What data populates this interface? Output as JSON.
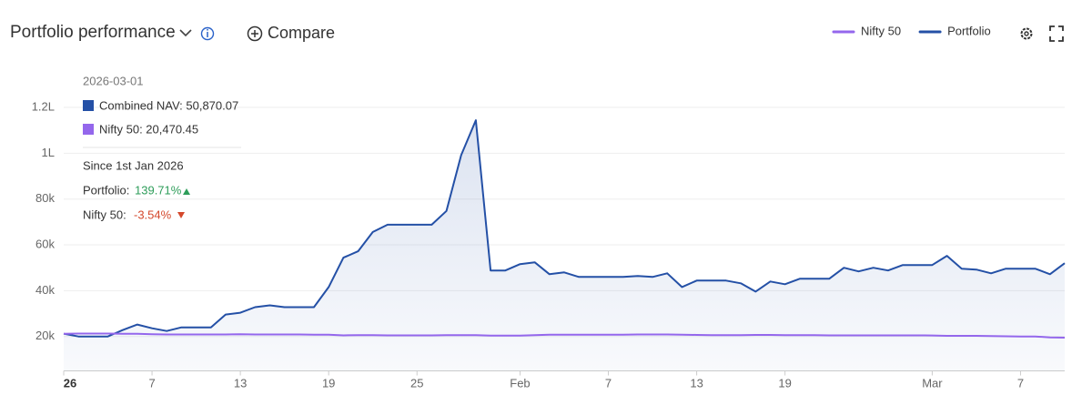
{
  "header": {
    "title": "Portfolio performance",
    "compare": "Compare"
  },
  "tooltip": {
    "date": "2026-03-01",
    "nav": "Combined NAV: 50,870.07",
    "nifty": "Nifty 50: 20,470.45",
    "since": "Since 1st Jan 2026",
    "portfolio_label": "Portfolio:",
    "portfolio_change": "139.71%",
    "nifty_label": "Nifty 50:",
    "nifty_change": "-3.54%"
  },
  "chart_data": {
    "type": "line",
    "x": [
      "2026-01-01",
      "2026-01-02",
      "2026-01-03",
      "2026-01-04",
      "2026-01-05",
      "2026-01-06",
      "2026-01-07",
      "2026-01-08",
      "2026-01-09",
      "2026-01-10",
      "2026-01-11",
      "2026-01-12",
      "2026-01-13",
      "2026-01-14",
      "2026-01-15",
      "2026-01-16",
      "2026-01-17",
      "2026-01-18",
      "2026-01-19",
      "2026-01-20",
      "2026-01-21",
      "2026-01-22",
      "2026-01-23",
      "2026-01-24",
      "2026-01-25",
      "2026-01-26",
      "2026-01-27",
      "2026-01-28",
      "2026-01-29",
      "2026-01-30",
      "2026-01-31",
      "2026-02-01",
      "2026-02-02",
      "2026-02-03",
      "2026-02-04",
      "2026-02-05",
      "2026-02-06",
      "2026-02-07",
      "2026-02-08",
      "2026-02-09",
      "2026-02-10",
      "2026-02-11",
      "2026-02-12",
      "2026-02-13",
      "2026-02-14",
      "2026-02-15",
      "2026-02-16",
      "2026-02-17",
      "2026-02-18",
      "2026-02-19",
      "2026-02-20",
      "2026-02-21",
      "2026-02-22",
      "2026-02-23",
      "2026-02-24",
      "2026-02-25",
      "2026-02-26",
      "2026-02-27",
      "2026-02-28",
      "2026-03-01",
      "2026-03-02",
      "2026-03-03",
      "2026-03-04",
      "2026-03-05",
      "2026-03-06",
      "2026-03-07",
      "2026-03-08",
      "2026-03-09",
      "2026-03-10"
    ],
    "series": [
      {
        "name": "Nifty 50",
        "color": "#9467ec",
        "values": [
          21200,
          21300,
          21300,
          21300,
          21200,
          21200,
          21000,
          20900,
          20900,
          20900,
          20900,
          20900,
          21000,
          20900,
          20900,
          20900,
          20900,
          20800,
          20800,
          20500,
          20600,
          20600,
          20500,
          20500,
          20500,
          20500,
          20600,
          20600,
          20600,
          20400,
          20400,
          20400,
          20600,
          20800,
          20800,
          20800,
          20800,
          20800,
          20800,
          20900,
          20900,
          20900,
          20800,
          20700,
          20600,
          20600,
          20600,
          20700,
          20700,
          20600,
          20600,
          20600,
          20500,
          20500,
          20500,
          20500,
          20500,
          20500,
          20500,
          20470,
          20300,
          20300,
          20300,
          20200,
          20100,
          20000,
          20000,
          19600,
          19500
        ]
      },
      {
        "name": "Portfolio",
        "color": "#2450a6",
        "values": [
          21200,
          20000,
          20000,
          20000,
          22800,
          25200,
          23600,
          22400,
          24000,
          24000,
          24000,
          29600,
          30400,
          32800,
          33600,
          32800,
          32800,
          32800,
          41600,
          54400,
          57200,
          65600,
          68800,
          68800,
          68800,
          68800,
          74800,
          99200,
          114400,
          48800,
          48800,
          51600,
          52400,
          47200,
          48000,
          46000,
          46000,
          46000,
          46000,
          46400,
          46000,
          47600,
          41600,
          44400,
          44400,
          44400,
          43200,
          39600,
          44000,
          42800,
          45200,
          45200,
          45200,
          50000,
          48400,
          50000,
          48800,
          51200,
          51200,
          51200,
          55200,
          49600,
          49200,
          47600,
          49600,
          49600,
          49600,
          47200,
          52000
        ]
      }
    ],
    "xlim": [
      "2026-01-01",
      "2026-03-10"
    ],
    "xticks": [
      {
        "value": "2026-01-01",
        "label": "26"
      },
      {
        "value": "2026-01-07",
        "label": "7"
      },
      {
        "value": "2026-01-13",
        "label": "13"
      },
      {
        "value": "2026-01-19",
        "label": "19"
      },
      {
        "value": "2026-01-25",
        "label": "25"
      },
      {
        "value": "2026-02-01",
        "label": "Feb"
      },
      {
        "value": "2026-02-07",
        "label": "7"
      },
      {
        "value": "2026-02-13",
        "label": "13"
      },
      {
        "value": "2026-02-19",
        "label": "19"
      },
      {
        "value": "2026-03-01",
        "label": "Mar"
      },
      {
        "value": "2026-03-07",
        "label": "7"
      }
    ],
    "ylim": [
      5000,
      120000
    ],
    "yticks": [
      {
        "value": 20000,
        "label": "20k"
      },
      {
        "value": 40000,
        "label": "40k"
      },
      {
        "value": 60000,
        "label": "60k"
      },
      {
        "value": 80000,
        "label": "80k"
      },
      {
        "value": 100000,
        "label": "1L"
      },
      {
        "value": 120000,
        "label": "1.2L"
      }
    ],
    "grid": true,
    "legend": "top-right"
  }
}
